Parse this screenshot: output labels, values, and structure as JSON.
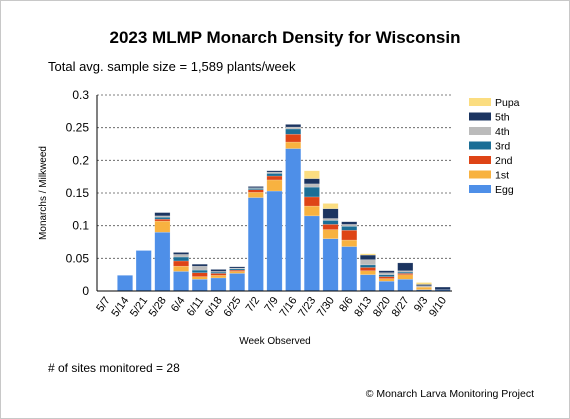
{
  "chart_data": {
    "type": "bar",
    "stacked": true,
    "title": "2023 MLMP Monarch Density for Wisconsin",
    "subtitle": "Total avg. sample size = 1,589 plants/week",
    "xlabel": "Week Observed",
    "ylabel": "Monarchs / Milkweed",
    "ylim": [
      0,
      0.3
    ],
    "yticks": [
      0,
      0.05,
      0.1,
      0.15,
      0.2,
      0.25,
      0.3
    ],
    "ytick_labels": [
      "0",
      "0.05",
      "0.1",
      "0.15",
      "0.2",
      "0.25",
      "0.3"
    ],
    "grid": "horizontal dashed",
    "legend_position": "right",
    "categories": [
      "5/7",
      "5/14",
      "5/21",
      "5/28",
      "6/4",
      "6/11",
      "6/18",
      "6/25",
      "7/2",
      "7/9",
      "7/16",
      "7/23",
      "7/30",
      "8/6",
      "8/13",
      "8/20",
      "8/27",
      "9/3",
      "9/10"
    ],
    "series": [
      {
        "name": "Egg",
        "color": "#4e8fe8",
        "values": [
          0,
          0.024,
          0.062,
          0.09,
          0.03,
          0.018,
          0.02,
          0.027,
          0.143,
          0.153,
          0.218,
          0.115,
          0.08,
          0.068,
          0.025,
          0.015,
          0.018,
          0.002,
          0.002
        ]
      },
      {
        "name": "1st",
        "color": "#f8b240",
        "values": [
          0,
          0,
          0,
          0.017,
          0.008,
          0.004,
          0.004,
          0.003,
          0.008,
          0.017,
          0.01,
          0.015,
          0.014,
          0.01,
          0.006,
          0.004,
          0.007,
          0.004,
          0
        ]
      },
      {
        "name": "2nd",
        "color": "#de4416",
        "values": [
          0,
          0,
          0,
          0.003,
          0.008,
          0.006,
          0.003,
          0.002,
          0.004,
          0.006,
          0.012,
          0.014,
          0.008,
          0.015,
          0.005,
          0.003,
          0.002,
          0,
          0
        ]
      },
      {
        "name": "3rd",
        "color": "#1b6e96",
        "values": [
          0,
          0,
          0,
          0.003,
          0.006,
          0.004,
          0.002,
          0.002,
          0.002,
          0.004,
          0.008,
          0.015,
          0.006,
          0.006,
          0.004,
          0.003,
          0.002,
          0,
          0
        ]
      },
      {
        "name": "4th",
        "color": "#bbbbbb",
        "values": [
          0,
          0,
          0,
          0.002,
          0.004,
          0.006,
          0.001,
          0.001,
          0.001,
          0.002,
          0.003,
          0.005,
          0.003,
          0.003,
          0.008,
          0.003,
          0.002,
          0.002,
          0
        ]
      },
      {
        "name": "5th",
        "color": "#1b3460",
        "values": [
          0,
          0,
          0,
          0.005,
          0.003,
          0.003,
          0.003,
          0.002,
          0.002,
          0.002,
          0.004,
          0.008,
          0.015,
          0.004,
          0.007,
          0.003,
          0.012,
          0.002,
          0.004
        ]
      },
      {
        "name": "Pupa",
        "color": "#fbdd80",
        "values": [
          0,
          0,
          0,
          0,
          0,
          0,
          0,
          0,
          0,
          0,
          0,
          0.012,
          0.008,
          0,
          0.002,
          0,
          0,
          0.003,
          0
        ]
      }
    ],
    "legend_order": [
      "Pupa",
      "5th",
      "4th",
      "3rd",
      "2nd",
      "1st",
      "Egg"
    ]
  },
  "footer": {
    "sites_note": "# of sites monitored = 28",
    "credit": "© Monarch Larva Monitoring Project"
  }
}
